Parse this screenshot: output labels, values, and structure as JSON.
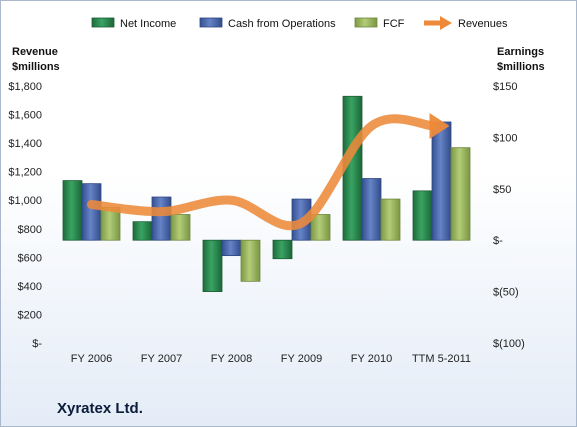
{
  "company_name": "Xyratex Ltd.",
  "colors": {
    "net_income": "#2a8a4f",
    "cash_from_operations": "#4a6ab5",
    "fcf": "#9bbb59",
    "revenues": "#ed8a3a"
  },
  "chart_data": {
    "type": "bar",
    "categories": [
      "FY 2006",
      "FY 2007",
      "FY 2008",
      "FY 2009",
      "FY 2010",
      "TTM 5-2011"
    ],
    "left_axis": {
      "title_line1": "Revenue",
      "title_line2": "$millions",
      "ticks": [
        "$-",
        "$200",
        "$400",
        "$600",
        "$800",
        "$1,000",
        "$1,200",
        "$1,400",
        "$1,600",
        "$1,800"
      ],
      "range": [
        0,
        1800
      ]
    },
    "right_axis": {
      "title_line1": "Earnings",
      "title_line2": "$millions",
      "ticks": [
        "$(100)",
        "$(50)",
        "$-",
        "$50",
        "$100",
        "$150"
      ],
      "range": [
        -100,
        150
      ]
    },
    "series": [
      {
        "name": "Net Income",
        "axis": "right",
        "type": "bar",
        "values": [
          58,
          18,
          -50,
          -18,
          140,
          48
        ]
      },
      {
        "name": "Cash from Operations",
        "axis": "right",
        "type": "bar",
        "values": [
          55,
          42,
          -15,
          40,
          60,
          115
        ]
      },
      {
        "name": "FCF",
        "axis": "right",
        "type": "bar",
        "values": [
          32,
          25,
          -40,
          25,
          40,
          90
        ]
      },
      {
        "name": "Revenues",
        "axis": "left",
        "type": "line",
        "values": [
          970,
          920,
          1000,
          840,
          1520,
          1520
        ]
      }
    ],
    "legend_position": "top",
    "grid": false
  }
}
